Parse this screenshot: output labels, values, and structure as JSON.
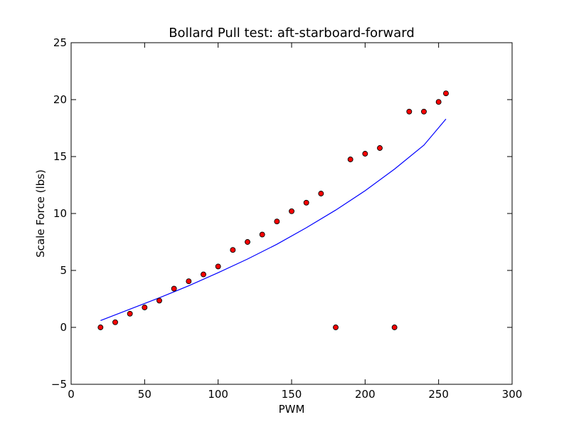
{
  "chart_data": {
    "type": "scatter",
    "title": "Bollard Pull test: aft-starboard-forward",
    "xlabel": "PWM",
    "ylabel": "Scale Force (lbs)",
    "xlim": [
      0,
      300
    ],
    "ylim": [
      -5,
      25
    ],
    "xticks": [
      0,
      50,
      100,
      150,
      200,
      250,
      300
    ],
    "yticks": [
      -5,
      0,
      5,
      10,
      15,
      20,
      25
    ],
    "xtick_labels": [
      "0",
      "50",
      "100",
      "150",
      "200",
      "250",
      "300"
    ],
    "ytick_labels": [
      "−5",
      "0",
      "5",
      "10",
      "15",
      "20",
      "25"
    ],
    "grid": false,
    "series": [
      {
        "kind": "scatter",
        "color": "#ff0000",
        "x": [
          20,
          30,
          40,
          50,
          60,
          70,
          80,
          90,
          100,
          110,
          120,
          130,
          140,
          150,
          160,
          170,
          180,
          190,
          200,
          210,
          220,
          230,
          240,
          250,
          255
        ],
        "y": [
          0,
          0.45,
          1.2,
          1.75,
          2.35,
          3.4,
          4.05,
          4.65,
          5.35,
          6.8,
          7.5,
          8.15,
          9.3,
          10.2,
          10.95,
          11.75,
          0,
          14.75,
          15.25,
          15.75,
          0,
          18.95,
          18.95,
          19.8,
          20.55
        ]
      },
      {
        "kind": "line",
        "color": "#0000ff",
        "x": [
          20,
          40,
          60,
          80,
          100,
          120,
          140,
          160,
          180,
          200,
          220,
          240,
          255
        ],
        "y": [
          0.6,
          1.6,
          2.6,
          3.65,
          4.8,
          6.0,
          7.3,
          8.75,
          10.3,
          12.0,
          13.9,
          16.0,
          18.3
        ]
      }
    ]
  }
}
